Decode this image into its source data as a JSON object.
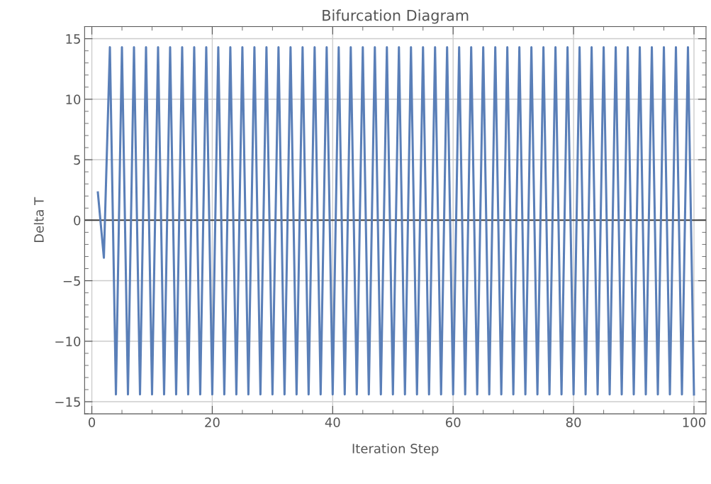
{
  "chart_data": {
    "type": "line",
    "title": "Bifurcation Diagram",
    "xlabel": "Iteration Step",
    "ylabel": "Delta T",
    "x": [
      1,
      2,
      3,
      4,
      5,
      6,
      7,
      8,
      9,
      10,
      11,
      12,
      13,
      14,
      15,
      16,
      17,
      18,
      19,
      20,
      21,
      22,
      23,
      24,
      25,
      26,
      27,
      28,
      29,
      30,
      31,
      32,
      33,
      34,
      35,
      36,
      37,
      38,
      39,
      40,
      41,
      42,
      43,
      44,
      45,
      46,
      47,
      48,
      49,
      50,
      51,
      52,
      53,
      54,
      55,
      56,
      57,
      58,
      59,
      60,
      61,
      62,
      63,
      64,
      65,
      66,
      67,
      68,
      69,
      70,
      71,
      72,
      73,
      74,
      75,
      76,
      77,
      78,
      79,
      80,
      81,
      82,
      83,
      84,
      85,
      86,
      87,
      88,
      89,
      90,
      91,
      92,
      93,
      94,
      95,
      96,
      97,
      98,
      99,
      100
    ],
    "series": [
      {
        "color": "#5a7fb8",
        "values": [
          2.3,
          -3.1,
          14.3,
          -14.4,
          14.3,
          -14.4,
          14.3,
          -14.4,
          14.3,
          -14.4,
          14.3,
          -14.4,
          14.3,
          -14.4,
          14.3,
          -14.4,
          14.3,
          -14.4,
          14.3,
          -14.4,
          14.3,
          -14.4,
          14.3,
          -14.4,
          14.3,
          -14.4,
          14.3,
          -14.4,
          14.3,
          -14.4,
          14.3,
          -14.4,
          14.3,
          -14.4,
          14.3,
          -14.4,
          14.3,
          -14.4,
          14.3,
          -14.4,
          14.3,
          -14.4,
          14.3,
          -14.4,
          14.3,
          -14.4,
          14.3,
          -14.4,
          14.3,
          -14.4,
          14.3,
          -14.4,
          14.3,
          -14.4,
          14.3,
          -14.4,
          14.3,
          -14.4,
          14.3,
          -14.4,
          14.3,
          -14.4,
          14.3,
          -14.4,
          14.3,
          -14.4,
          14.3,
          -14.4,
          14.3,
          -14.4,
          14.3,
          -14.4,
          14.3,
          -14.4,
          14.3,
          -14.4,
          14.3,
          -14.4,
          14.3,
          -14.4,
          14.3,
          -14.4,
          14.3,
          -14.4,
          14.3,
          -14.4,
          14.3,
          -14.4,
          14.3,
          -14.4,
          14.3,
          -14.4,
          14.3,
          -14.4,
          14.3,
          -14.4,
          14.3,
          -14.4,
          14.3,
          -14.4
        ]
      }
    ],
    "xlim": [
      -1.2,
      102
    ],
    "ylim": [
      -16,
      16
    ],
    "xticks": [
      0,
      20,
      40,
      60,
      80,
      100
    ],
    "yticks": [
      -15,
      -10,
      -5,
      0,
      5,
      10,
      15
    ],
    "ref_lines": [
      {
        "axis": "y",
        "value": 0,
        "color": "#404040"
      }
    ],
    "grid": true,
    "marker": "none",
    "line_style": "solid",
    "legend": false
  }
}
